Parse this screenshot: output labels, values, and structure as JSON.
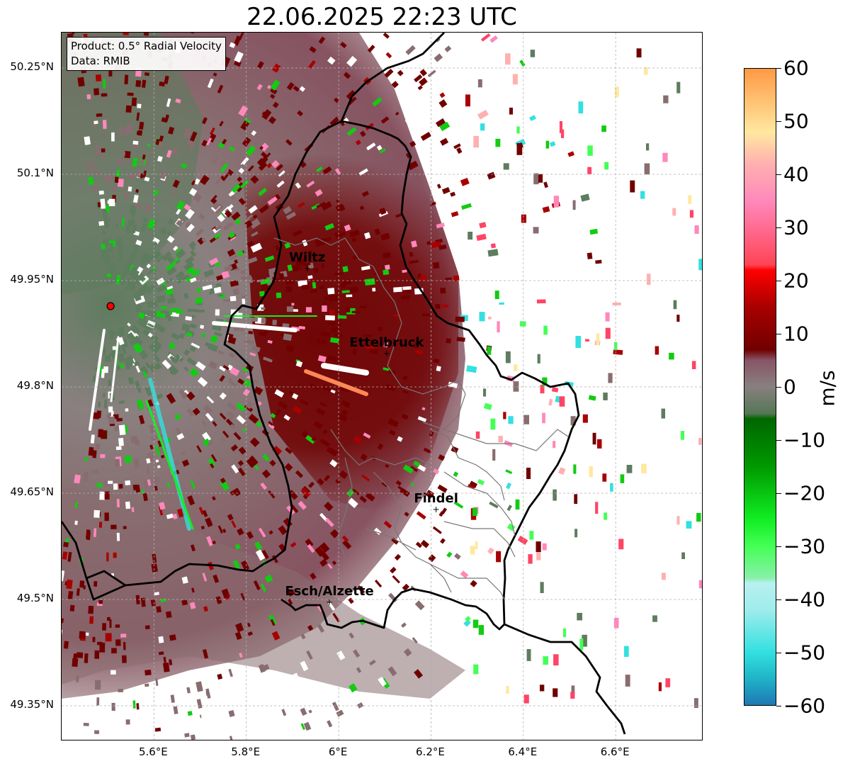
{
  "title": "22.06.2025 22:23 UTC",
  "info": {
    "product": "Product: 0.5° Radial Velocity",
    "source": "Data: RMIB"
  },
  "lat_labels": [
    "50.25°N",
    "50.1°N",
    "49.95°N",
    "49.8°N",
    "49.65°N",
    "49.5°N",
    "49.35°N"
  ],
  "lon_labels": [
    "5.6°E",
    "5.8°E",
    "6°E",
    "6.2°E",
    "6.4°E",
    "6.6°E"
  ],
  "cities": [
    {
      "name": "Wiltz",
      "lat": 49.967,
      "lon": 5.932
    },
    {
      "name": "Ettelbruck",
      "lat": 49.847,
      "lon": 6.104
    },
    {
      "name": "Findel",
      "lat": 49.627,
      "lon": 6.211
    },
    {
      "name": "Esch/Alzette",
      "lat": 49.496,
      "lon": 5.98
    }
  ],
  "radar_site": {
    "lat": 49.914,
    "lon": 5.506,
    "color": "#ff0000"
  },
  "map_extent": {
    "lon_min": 5.4,
    "lon_max": 6.79,
    "lat_min": 49.3,
    "lat_max": 50.3
  },
  "colorbar": {
    "unit": "m/s",
    "min": -60,
    "max": 60,
    "ticks": [
      "60",
      "50",
      "40",
      "30",
      "20",
      "10",
      "0",
      "−10",
      "−20",
      "−30",
      "−40",
      "−50",
      "−60"
    ],
    "stops": [
      {
        "v": -60,
        "color": "#1f77b4"
      },
      {
        "v": -55,
        "color": "#1fb4c8"
      },
      {
        "v": -50,
        "color": "#33e0e0"
      },
      {
        "v": -42,
        "color": "#a0ecec"
      },
      {
        "v": -37,
        "color": "#b8f0f0"
      },
      {
        "v": -36,
        "color": "#88f0a8"
      },
      {
        "v": -30,
        "color": "#44ff55"
      },
      {
        "v": -25,
        "color": "#11ee22"
      },
      {
        "v": -15,
        "color": "#009900"
      },
      {
        "v": -6,
        "color": "#006600"
      },
      {
        "v": -5,
        "color": "#557755"
      },
      {
        "v": 0,
        "color": "#888080"
      },
      {
        "v": 5,
        "color": "#885566"
      },
      {
        "v": 7,
        "color": "#700000"
      },
      {
        "v": 15,
        "color": "#a80000"
      },
      {
        "v": 22,
        "color": "#ff0000"
      },
      {
        "v": 23,
        "color": "#ff4455"
      },
      {
        "v": 35,
        "color": "#ff88bb"
      },
      {
        "v": 42,
        "color": "#ffb0b0"
      },
      {
        "v": 48,
        "color": "#ffe8a0"
      },
      {
        "v": 60,
        "color": "#ff9944"
      }
    ]
  },
  "colors": {
    "outbound_dark": "#700000",
    "outbound_red": "#a80000",
    "near_zero_grey": "#886d70",
    "inbound_dark": "#5e7c5e",
    "inbound_green": "#11cc11"
  }
}
